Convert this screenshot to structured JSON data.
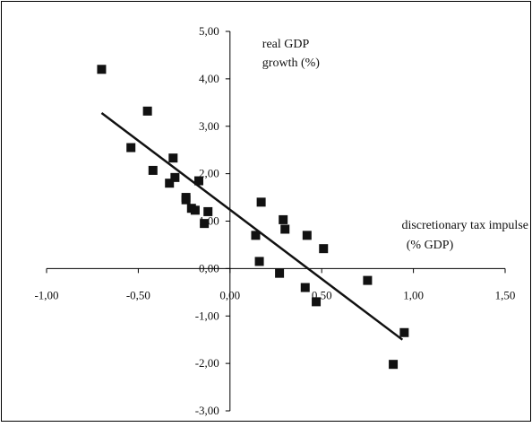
{
  "chart_data": {
    "type": "scatter",
    "title": "",
    "xlabel_lines": [
      "discretionary tax impulse",
      "(% GDP)"
    ],
    "ylabel_lines": [
      "real GDP",
      "growth (%)"
    ],
    "xlim": [
      -1.0,
      1.5
    ],
    "ylim": [
      -3.0,
      5.0
    ],
    "x_ticks": [
      -1.0,
      -0.5,
      0.0,
      0.5,
      1.0,
      1.5
    ],
    "y_ticks": [
      5.0,
      4.0,
      3.0,
      2.0,
      1.0,
      0.0,
      -1.0,
      -2.0,
      -3.0
    ],
    "x_tick_labels": [
      "-1,00",
      "-0,50",
      "0,00",
      "0,50",
      "1,00",
      "1,50"
    ],
    "y_tick_labels": [
      "5,00",
      "4,00",
      "3,00",
      "2,00",
      "1,00",
      "0,00",
      "-1,00",
      "-2,00",
      "-3,00"
    ],
    "grid": false,
    "legend": "none",
    "series": [
      {
        "marker": "square",
        "color": "#111111",
        "points": [
          [
            -0.7,
            4.2
          ],
          [
            -0.54,
            2.55
          ],
          [
            -0.45,
            3.32
          ],
          [
            -0.42,
            2.07
          ],
          [
            -0.33,
            1.8
          ],
          [
            -0.31,
            2.33
          ],
          [
            -0.3,
            1.92
          ],
          [
            -0.24,
            1.5
          ],
          [
            -0.24,
            1.45
          ],
          [
            -0.21,
            1.27
          ],
          [
            -0.19,
            1.23
          ],
          [
            -0.17,
            1.85
          ],
          [
            -0.14,
            0.95
          ],
          [
            -0.12,
            1.2
          ],
          [
            0.14,
            0.7
          ],
          [
            0.16,
            0.15
          ],
          [
            0.17,
            1.4
          ],
          [
            0.27,
            -0.1
          ],
          [
            0.29,
            1.03
          ],
          [
            0.3,
            0.83
          ],
          [
            0.41,
            -0.4
          ],
          [
            0.42,
            0.7
          ],
          [
            0.47,
            -0.7
          ],
          [
            0.51,
            0.42
          ],
          [
            0.75,
            -0.25
          ],
          [
            0.89,
            -2.02
          ],
          [
            0.95,
            -1.35
          ]
        ]
      }
    ],
    "trendline": {
      "type": "linear",
      "from": [
        -0.7,
        3.28
      ],
      "to": [
        0.94,
        -1.5
      ],
      "color": "#111111"
    }
  }
}
